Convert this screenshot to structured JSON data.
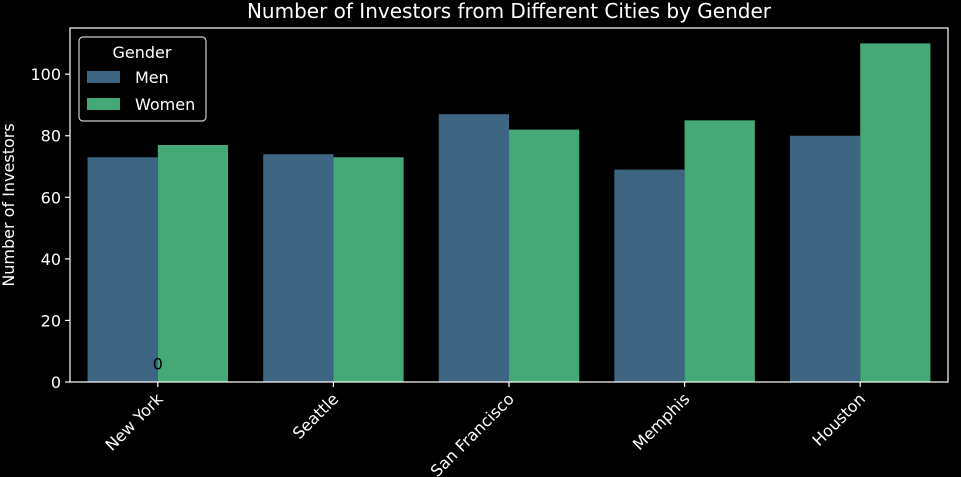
{
  "chart_data": {
    "type": "bar",
    "title": "Number of Investors from Different Cities by Gender",
    "xlabel": "",
    "ylabel": "Number of Investors",
    "categories": [
      "New York",
      "Seattle",
      "San Francisco",
      "Memphis",
      "Houston"
    ],
    "series": [
      {
        "name": "Men",
        "values": [
          73,
          74,
          87,
          69,
          80
        ],
        "color": "#3e6582"
      },
      {
        "name": "Women",
        "values": [
          77,
          73,
          82,
          85,
          110
        ],
        "color": "#45a877"
      }
    ],
    "ylim": [
      0,
      115
    ],
    "yticks": [
      0,
      20,
      40,
      60,
      80,
      100
    ],
    "legend": {
      "title": "Gender",
      "placement": "top-left"
    },
    "annotations": [
      {
        "text": "0",
        "category": "New York",
        "y": 6
      }
    ],
    "grid": false,
    "background": "#000000",
    "axis_color": "#ffffff"
  }
}
